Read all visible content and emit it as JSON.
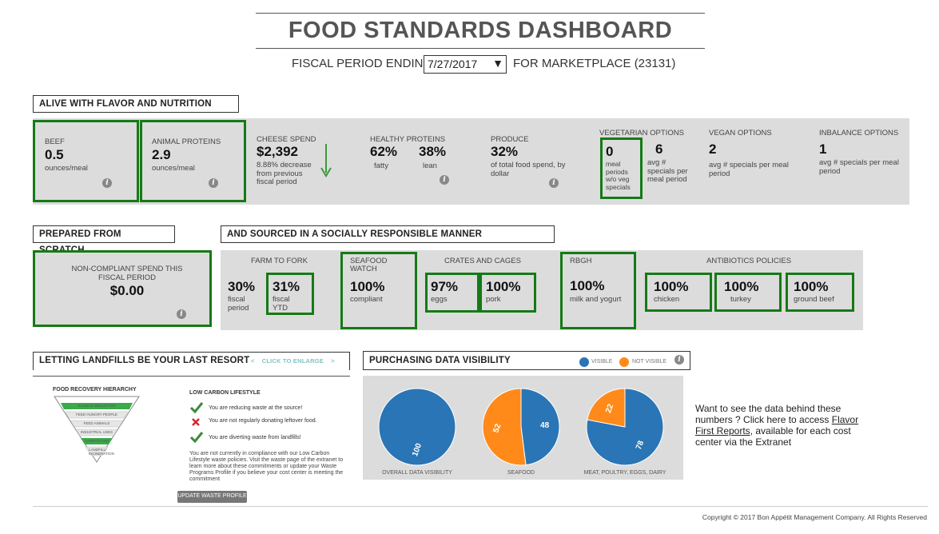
{
  "header": {
    "title": "FOOD STANDARDS DASHBOARD",
    "period_label": "FISCAL PERIOD ENDING:",
    "period_value": "7/27/2017",
    "marketplace": "FOR MARKETPLACE (23131)"
  },
  "alive": {
    "heading": "ALIVE WITH FLAVOR AND NUTRITION",
    "beef": {
      "label": "BEEF",
      "value": "0.5",
      "unit": "ounces/meal"
    },
    "animal": {
      "label": "ANIMAL PROTEINS",
      "value": "2.9",
      "unit": "ounces/meal"
    },
    "cheese": {
      "label": "CHEESE SPEND",
      "value": "$2,392",
      "desc": "8.88% decrease from previous fiscal period",
      "trend": "down-arrow-icon"
    },
    "healthy": {
      "label": "HEALTHY PROTEINS",
      "fatty_value": "62%",
      "fatty_label": "fatty",
      "lean_value": "38%",
      "lean_label": "lean"
    },
    "produce": {
      "label": "PRODUCE",
      "value": "32%",
      "desc": "of total food spend, by dollar"
    },
    "vegetarian": {
      "label": "VEGETARIAN OPTIONS",
      "periods_value": "0",
      "periods_desc": "meal periods w/o veg specials",
      "specials_value": "6",
      "specials_desc": "avg # specials per meal period"
    },
    "vegan": {
      "label": "VEGAN OPTIONS",
      "value": "2",
      "desc": "avg # specials per meal period"
    },
    "inbalance": {
      "label": "INBALANCE OPTIONS",
      "value": "1",
      "desc": "avg # specials per meal period"
    }
  },
  "scratch": {
    "heading": "PREPARED FROM SCRATCH",
    "label": "NON-COMPLIANT SPEND THIS FISCAL PERIOD",
    "value": "$0.00"
  },
  "sourced": {
    "heading": "AND SOURCED IN A SOCIALLY RESPONSIBLE MANNER",
    "farm": {
      "label": "FARM TO FORK",
      "period_value": "30%",
      "period_desc": "fiscal period",
      "ytd_value": "31%",
      "ytd_desc": "fiscal YTD"
    },
    "seafood": {
      "label": "SEAFOOD WATCH",
      "value": "100%",
      "desc": "compliant"
    },
    "crates": {
      "label": "CRATES AND CAGES",
      "eggs_value": "97%",
      "eggs_desc": "eggs",
      "pork_value": "100%",
      "pork_desc": "pork"
    },
    "rbgh": {
      "label": "RBGH",
      "value": "100%",
      "desc": "milk and yogurt"
    },
    "antibiotics": {
      "label": "ANTIBIOTICS POLICIES",
      "chicken_value": "100%",
      "chicken_desc": "chicken",
      "turkey_value": "100%",
      "turkey_desc": "turkey",
      "beef_value": "100%",
      "beef_desc": "ground beef"
    }
  },
  "landfills": {
    "heading": "LETTING LANDFILLS BE YOUR LAST RESORT",
    "enlarge": "CLICK TO ENLARGE",
    "hierarchy_title": "FOOD RECOVERY HIERARCHY",
    "hierarchy_levels": [
      "SOURCE REDUCTION",
      "FEED HUNGRY PEOPLE",
      "FEED ANIMALS",
      "INDUSTRIAL USES",
      "COMPOSTING",
      "LANDFILL/ INCINERATION"
    ],
    "lifestyle_title": "LOW CARBON LIFESTYLE",
    "items": [
      {
        "icon": "check-icon",
        "text": "You are reducing waste at the source!"
      },
      {
        "icon": "x-icon",
        "text": "You are not regularly donating leftover food."
      },
      {
        "icon": "check-icon",
        "text": "You are diverting waste from landfills!"
      }
    ],
    "note": "You are not currently in compliance with our Low Carbon Lifestyle waste policies. Visit the waste page of the extranet to learn more about these commitments or update your Waste Programs Profile if you believe your cost center is meeting the commitment",
    "button": "UPDATE WASTE PROFILE"
  },
  "purchasing": {
    "heading": "PURCHASING DATA VISIBILITY",
    "legend_visible": "VISIBLE",
    "legend_not_visible": "NOT VISIBLE",
    "colors": {
      "visible": "#2a75b5",
      "not_visible": "#ff8a1a"
    }
  },
  "chart_data": [
    {
      "type": "pie",
      "title": "OVERALL DATA VISIBILITY",
      "slices": [
        {
          "name": "VISIBLE",
          "value": 100
        },
        {
          "name": "NOT VISIBLE",
          "value": 0
        }
      ],
      "labels": [
        "100",
        ""
      ]
    },
    {
      "type": "pie",
      "title": "SEAFOOD",
      "slices": [
        {
          "name": "VISIBLE",
          "value": 48
        },
        {
          "name": "NOT VISIBLE",
          "value": 52
        }
      ],
      "labels": [
        "48",
        "52"
      ]
    },
    {
      "type": "pie",
      "title": "MEAT, POULTRY, EGGS, DAIRY",
      "slices": [
        {
          "name": "VISIBLE",
          "value": 78
        },
        {
          "name": "NOT VISIBLE",
          "value": 22
        }
      ],
      "labels": [
        "78",
        "22"
      ]
    }
  ],
  "side_note": {
    "text_before": "Want to see the data behind these numbers ? Click here to access ",
    "link": "Flavor First Reports",
    "text_after": ", available for each cost center via the Extranet"
  },
  "footer": {
    "copyright": "Copyright © 2017 Bon Appétit Management Company. All Rights Reserved"
  }
}
